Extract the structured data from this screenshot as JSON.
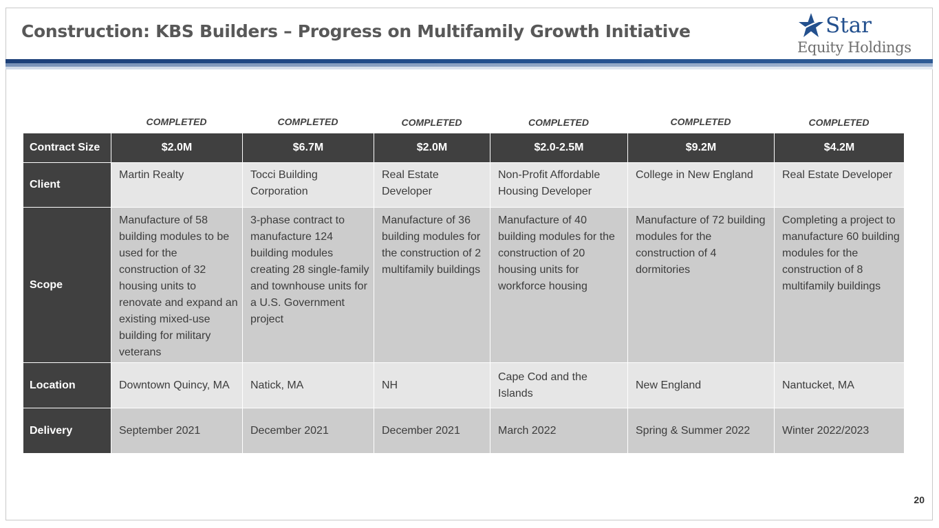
{
  "title": "Construction: KBS Builders – Progress on Multifamily Growth Initiative",
  "logo": {
    "line1": "Star",
    "line2": "Equity Holdings"
  },
  "statuses": [
    "COMPLETED",
    "COMPLETED",
    "COMPLETED",
    "COMPLETED",
    "COMPLETED",
    "COMPLETED"
  ],
  "table": {
    "row_headers": {
      "contract_size": "Contract Size",
      "client": "Client",
      "scope": "Scope",
      "location": "Location",
      "delivery": "Delivery"
    },
    "projects": [
      {
        "contract_size": "$2.0M",
        "client": "Martin Realty",
        "scope": "Manufacture of 58 building modules to be used for the construction of 32 housing units to renovate and expand an existing mixed-use building for military veterans",
        "location": "Downtown Quincy, MA",
        "delivery": "September 2021"
      },
      {
        "contract_size": "$6.7M",
        "client": "Tocci Building Corporation",
        "scope": "3-phase contract to manufacture 124 building modules creating 28 single-family and townhouse units for a U.S. Government project",
        "location": "Natick, MA",
        "delivery": "December 2021"
      },
      {
        "contract_size": "$2.0M",
        "client": "Real Estate Developer",
        "scope": "Manufacture of 36 building modules for the construction of 2 multifamily buildings",
        "location": "NH",
        "delivery": "December 2021"
      },
      {
        "contract_size": "$2.0-2.5M",
        "client": "Non-Profit Affordable Housing Developer",
        "scope": "Manufacture of 40 building modules for the construction of 20 housing units for workforce housing",
        "location": "Cape Cod and the Islands",
        "delivery": "March 2022"
      },
      {
        "contract_size": "$9.2M",
        "client": "College in New England",
        "scope": "Manufacture of 72 building modules for the construction of 4 dormitories",
        "location": "New England",
        "delivery": "Spring & Summer 2022"
      },
      {
        "contract_size": "$4.2M",
        "client": "Real Estate Developer",
        "scope": "Completing a project to manufacture 60 building modules for the construction of 8 multifamily buildings",
        "location": "Nantucket, MA",
        "delivery": "Winter 2022/2023"
      }
    ]
  },
  "page_number": "20"
}
